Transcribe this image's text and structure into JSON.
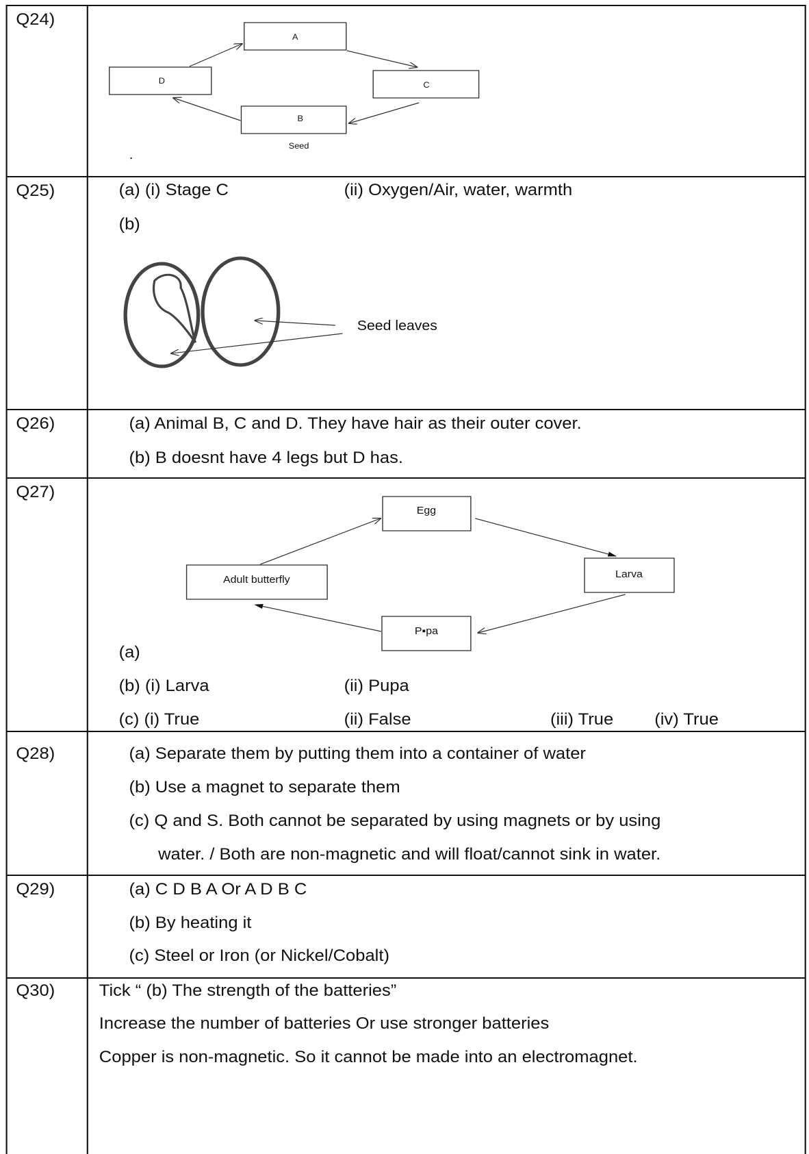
{
  "rows": [
    {
      "label": "Q24)",
      "diagram": {
        "boxes": [
          "A",
          "D",
          "C",
          "B"
        ],
        "note": "Seed"
      }
    },
    {
      "label": "Q25)",
      "lines": [
        [
          "(a) (i) Stage C",
          "(ii) Oxygen/Air, water, warmth"
        ],
        [
          "(b)"
        ]
      ],
      "diagram": {
        "label": "Seed leaves"
      }
    },
    {
      "label": "Q26)",
      "lines": [
        [
          "(a) Animal B, C and D.  They have hair as their outer cover."
        ],
        [
          "(b) B doesnt have 4 legs but D has."
        ]
      ]
    },
    {
      "label": "Q27)",
      "diagram": {
        "boxes": [
          "Egg",
          "Larva",
          "P▪pa",
          "Adult butterfly"
        ]
      },
      "lines": [
        [
          "(a)"
        ],
        [
          "(b) (i) Larva",
          "(ii)  Pupa"
        ],
        [
          "(c) (i) True",
          "(ii)  False",
          "(iii) True",
          "(iv)  True"
        ]
      ]
    },
    {
      "label": "Q28)",
      "lines": [
        [
          "(a) Separate them by putting them into a container of water"
        ],
        [
          "(b) Use a magnet to separate them"
        ],
        [
          "(c) Q and S.  Both cannot be separated by using magnets or by using"
        ],
        [
          "water. / Both are non-magnetic and will float/cannot sink in water."
        ]
      ]
    },
    {
      "label": "Q29)",
      "lines": [
        [
          "(a) C  D  B  A  Or   A  D  B  C"
        ],
        [
          "(b) By heating it"
        ],
        [
          "(c) Steel or Iron (or Nickel/Cobalt)"
        ]
      ]
    },
    {
      "label": "Q30)",
      "lines": [
        [
          "Tick “ (b) The strength of the batteries”"
        ],
        [
          "Increase the number of batteries Or use stronger batteries"
        ],
        [
          "Copper is non-magnetic.  So it cannot be made into an electromagnet."
        ]
      ]
    }
  ]
}
